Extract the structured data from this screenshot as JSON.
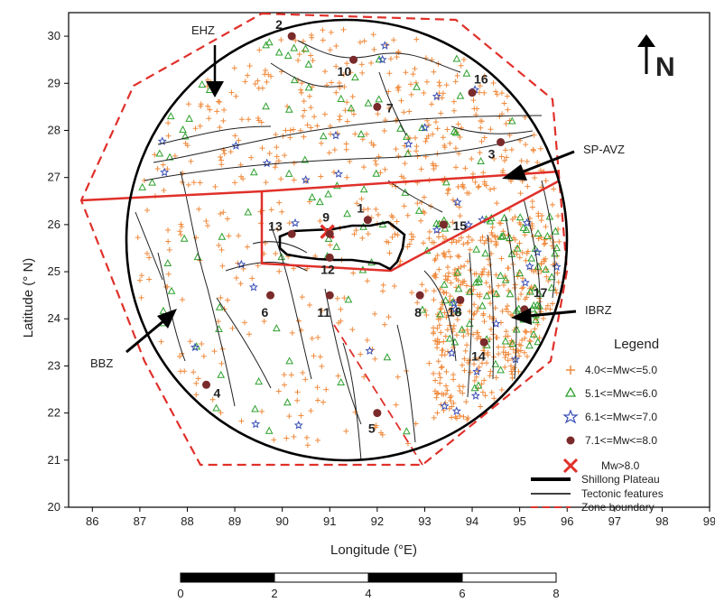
{
  "axes": {
    "xlabel": "Longitude (°E)",
    "ylabel": "Latitude (° N)",
    "xlim": [
      85.5,
      99
    ],
    "ylim": [
      20,
      30.5
    ],
    "xticks": [
      "86",
      "87",
      "88",
      "89",
      "90",
      "91",
      "92",
      "93",
      "94",
      "95",
      "96",
      "97",
      "98",
      "99"
    ],
    "yticks": [
      "20",
      "21",
      "22",
      "23",
      "24",
      "25",
      "26",
      "27",
      "28",
      "29",
      "30"
    ]
  },
  "north_arrow": {
    "label": "N"
  },
  "zones": [
    {
      "name": "EHZ"
    },
    {
      "name": "SP-AVZ"
    },
    {
      "name": "IBRZ"
    },
    {
      "name": "BBZ"
    }
  ],
  "events_large": [
    {
      "id": "1",
      "lon": 91.8,
      "lat": 26.1
    },
    {
      "id": "2",
      "lon": 90.2,
      "lat": 30.0
    },
    {
      "id": "3",
      "lon": 94.6,
      "lat": 27.75
    },
    {
      "id": "4",
      "lon": 88.4,
      "lat": 22.6
    },
    {
      "id": "5",
      "lon": 92.0,
      "lat": 22.0
    },
    {
      "id": "6",
      "lon": 89.75,
      "lat": 24.5
    },
    {
      "id": "7",
      "lon": 92.0,
      "lat": 28.5
    },
    {
      "id": "8",
      "lon": 92.9,
      "lat": 24.5
    },
    {
      "id": "9",
      "lon": 91.0,
      "lat": 25.8
    },
    {
      "id": "10",
      "lon": 91.5,
      "lat": 29.5
    },
    {
      "id": "11",
      "lon": 91.0,
      "lat": 24.5
    },
    {
      "id": "12",
      "lon": 91.0,
      "lat": 25.3
    },
    {
      "id": "13",
      "lon": 90.2,
      "lat": 25.8
    },
    {
      "id": "14",
      "lon": 94.25,
      "lat": 23.5
    },
    {
      "id": "15",
      "lon": 93.4,
      "lat": 26.0
    },
    {
      "id": "16",
      "lon": 94.0,
      "lat": 28.8
    },
    {
      "id": "17",
      "lon": 95.1,
      "lat": 24.2
    },
    {
      "id": "18",
      "lon": 93.75,
      "lat": 24.4
    }
  ],
  "mega_event": {
    "lon": 90.95,
    "lat": 25.85
  },
  "legend": {
    "title": "Legend",
    "items": [
      {
        "label": "4.0<=Mw<=5.0",
        "symbol": "plus",
        "color": "#f08a3c"
      },
      {
        "label": "5.1<=Mw<=6.0",
        "symbol": "triangle",
        "color": "#2ca02c"
      },
      {
        "label": "6.1<=Mw<=7.0",
        "symbol": "star",
        "color": "#3a4fb5"
      },
      {
        "label": "7.1<=Mw<=8.0",
        "symbol": "dot",
        "color": "#7a2a2a"
      },
      {
        "label": "Mw>8.0",
        "symbol": "cross",
        "color": "#e0302a"
      },
      {
        "label": "Shillong Plateau",
        "symbol": "thick-line",
        "color": "#000000"
      },
      {
        "label": "Tectonic features",
        "symbol": "line",
        "color": "#000000"
      },
      {
        "label": "Zone boundary",
        "symbol": "dash",
        "color": "#e0302a"
      }
    ]
  },
  "scale_bar": {
    "labels": [
      "0",
      "2",
      "4",
      "6",
      "8"
    ]
  }
}
